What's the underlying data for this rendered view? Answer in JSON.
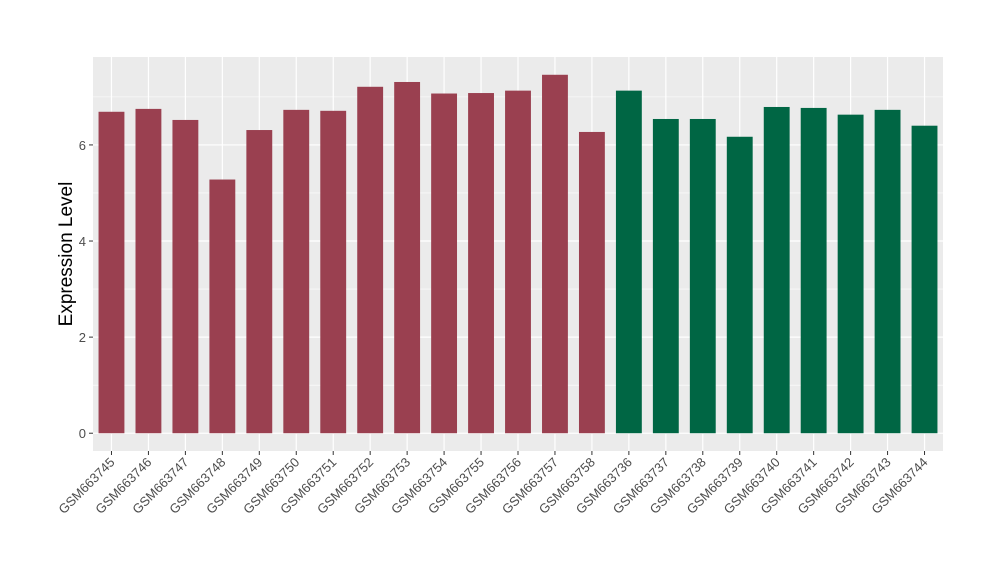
{
  "chart_data": {
    "type": "bar",
    "title": "",
    "xlabel": "",
    "ylabel": "Expression Level",
    "ylim": [
      -0.37,
      7.83
    ],
    "yticks": [
      0,
      2,
      4,
      6
    ],
    "grid": true,
    "legend": "none",
    "categories": [
      "GSM663745",
      "GSM663746",
      "GSM663747",
      "GSM663748",
      "GSM663749",
      "GSM663750",
      "GSM663751",
      "GSM663752",
      "GSM663753",
      "GSM663754",
      "GSM663755",
      "GSM663756",
      "GSM663757",
      "GSM663758",
      "GSM663736",
      "GSM663737",
      "GSM663738",
      "GSM663739",
      "GSM663740",
      "GSM663741",
      "GSM663742",
      "GSM663743",
      "GSM663744"
    ],
    "values": [
      6.69,
      6.75,
      6.52,
      5.28,
      6.31,
      6.73,
      6.71,
      7.21,
      7.31,
      7.07,
      7.08,
      7.13,
      7.46,
      6.27,
      7.13,
      6.54,
      6.54,
      6.17,
      6.79,
      6.77,
      6.63,
      6.73,
      6.4
    ],
    "groups": [
      0,
      0,
      0,
      0,
      0,
      0,
      0,
      0,
      0,
      0,
      0,
      0,
      0,
      0,
      1,
      1,
      1,
      1,
      1,
      1,
      1,
      1,
      1
    ],
    "colors": [
      "#9A4050",
      "#006644"
    ],
    "panel_background": "#EBEBEB",
    "grid_color": "#FFFFFF"
  }
}
